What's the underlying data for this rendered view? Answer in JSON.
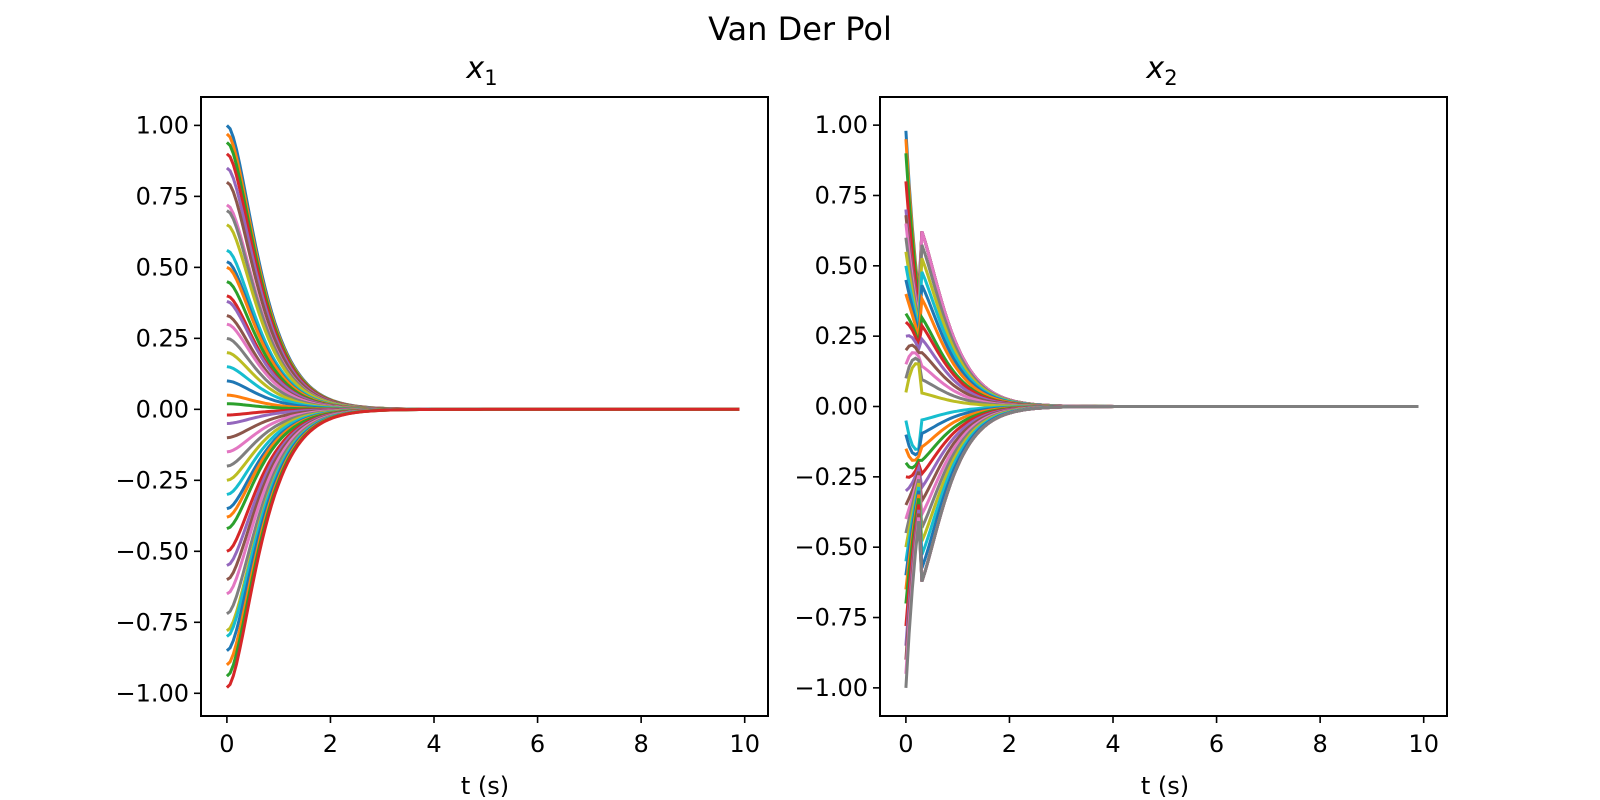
{
  "figure": {
    "suptitle": "Van Der Pol"
  },
  "chart_data": [
    {
      "type": "line",
      "title": "x",
      "title_subscript": "1",
      "xlabel": "t (s)",
      "ylabel": "",
      "xlim": [
        -0.5,
        10.45
      ],
      "ylim": [
        -1.08,
        1.1
      ],
      "xticks": [
        0,
        2,
        4,
        6,
        8,
        10
      ],
      "yticks": [
        1.0,
        0.75,
        0.5,
        0.25,
        0.0,
        -0.25,
        -0.5,
        -0.75,
        -1.0
      ],
      "ytick_labels": [
        "1.00",
        "0.75",
        "0.50",
        "0.25",
        "0.00",
        "−0.25",
        "−0.50",
        "−0.75",
        "−1.00"
      ],
      "xtick_labels": [
        "0",
        "2",
        "4",
        "6",
        "8",
        "10"
      ],
      "grid": false,
      "t_end": 9.9,
      "series_description_values": {
        "initial_values": [
          1.0,
          0.97,
          0.94,
          0.9,
          0.85,
          0.8,
          0.72,
          0.7,
          0.65,
          0.56,
          0.52,
          0.5,
          0.45,
          0.4,
          0.38,
          0.33,
          0.3,
          0.25,
          0.2,
          0.15,
          0.1,
          0.05,
          0.02,
          -0.02,
          -0.05,
          -0.1,
          -0.15,
          -0.2,
          -0.25,
          -0.3,
          -0.35,
          -0.38,
          -0.42,
          -0.5,
          -0.55,
          -0.6,
          -0.65,
          -0.72,
          -0.78,
          -0.8,
          -0.85,
          -0.9,
          -0.94,
          -0.98
        ],
        "decay_rate": 2.6
      }
    },
    {
      "type": "line",
      "title": "x",
      "title_subscript": "2",
      "xlabel": "t (s)",
      "ylabel": "",
      "xlim": [
        -0.5,
        10.45
      ],
      "ylim": [
        -1.1,
        1.1
      ],
      "xticks": [
        0,
        2,
        4,
        6,
        8,
        10
      ],
      "yticks": [
        1.0,
        0.75,
        0.5,
        0.25,
        0.0,
        -0.25,
        -0.5,
        -0.75,
        -1.0
      ],
      "ytick_labels": [
        "1.00",
        "0.75",
        "0.50",
        "0.25",
        "0.00",
        "−0.25",
        "−0.50",
        "−0.75",
        "−1.00"
      ],
      "xtick_labels": [
        "0",
        "2",
        "4",
        "6",
        "8",
        "10"
      ],
      "grid": false,
      "t_end": 9.9,
      "series_description_values": {
        "initial_values": [
          0.98,
          0.95,
          0.9,
          0.8,
          0.7,
          0.68,
          0.65,
          0.6,
          0.55,
          0.5,
          0.45,
          0.4,
          0.33,
          0.3,
          0.25,
          0.2,
          0.15,
          0.1,
          0.05,
          -0.05,
          -0.1,
          -0.15,
          -0.2,
          -0.25,
          -0.3,
          -0.35,
          -0.4,
          -0.45,
          -0.5,
          -0.55,
          -0.6,
          -0.65,
          -0.7,
          -0.78,
          -0.85,
          -0.9,
          -0.95,
          -1.0
        ],
        "decay_rate": 2.2
      }
    }
  ],
  "colors": [
    "#1f77b4",
    "#ff7f0e",
    "#2ca02c",
    "#d62728",
    "#9467bd",
    "#8c564b",
    "#e377c2",
    "#7f7f7f",
    "#bcbd22",
    "#17becf"
  ]
}
